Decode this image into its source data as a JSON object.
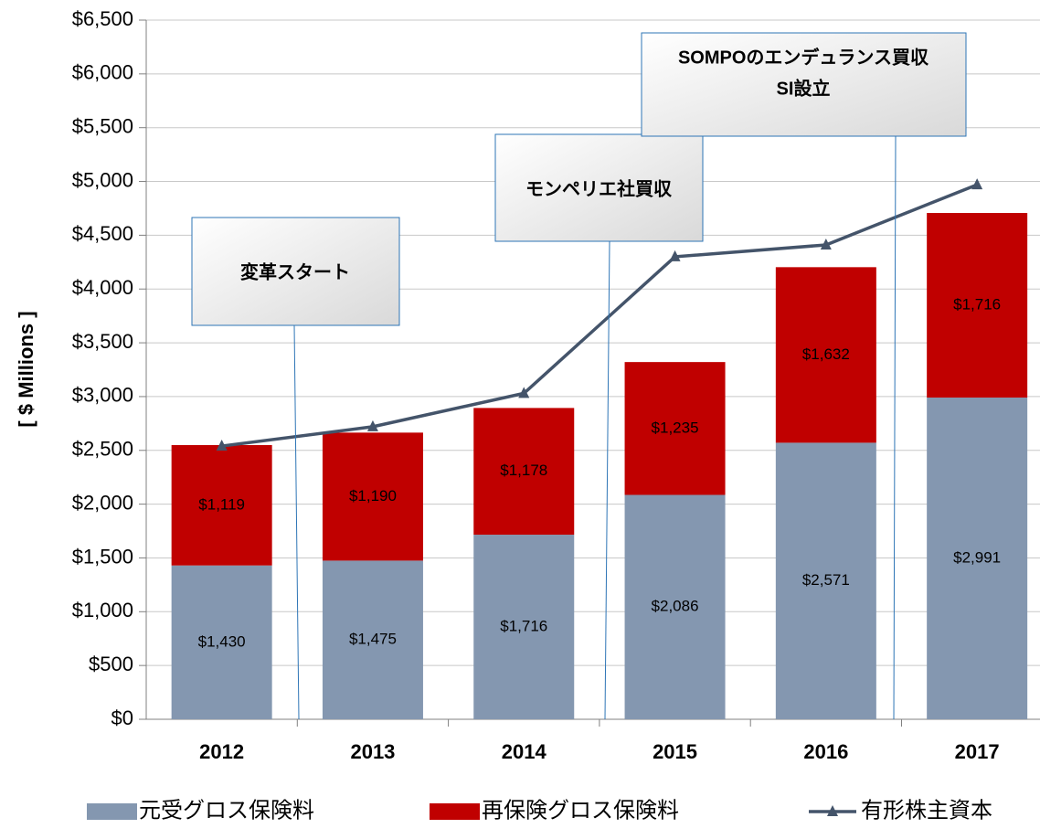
{
  "chart_data": {
    "type": "bar",
    "y_label": "[ $ Millions ]",
    "categories": [
      "2012",
      "2013",
      "2014",
      "2015",
      "2016",
      "2017"
    ],
    "series": [
      {
        "name": "元受グロス保険料",
        "color": "#8497b0",
        "values": [
          1430,
          1475,
          1716,
          2086,
          2571,
          2991
        ],
        "value_labels": [
          "$1,430",
          "$1,475",
          "$1,716",
          "$2,086",
          "$2,571",
          "$2,991"
        ]
      },
      {
        "name": "再保険グロス保険料",
        "color": "#c00000",
        "values": [
          1119,
          1190,
          1178,
          1235,
          1632,
          1716
        ],
        "value_labels": [
          "$1,119",
          "$1,190",
          "$1,178",
          "$1,235",
          "$1,632",
          "$1,716"
        ]
      },
      {
        "name": "有形株主資本",
        "type": "line",
        "color": "#44546a",
        "values": [
          2540,
          2720,
          3030,
          4300,
          4410,
          4970
        ]
      }
    ],
    "stacked": true,
    "ylim": [
      0,
      6500
    ],
    "yticks": [
      {
        "value": 0,
        "label": "$0"
      },
      {
        "value": 500,
        "label": "$500"
      },
      {
        "value": 1000,
        "label": "$1,000"
      },
      {
        "value": 1500,
        "label": "$1,500"
      },
      {
        "value": 2000,
        "label": "$2,000"
      },
      {
        "value": 2500,
        "label": "$2,500"
      },
      {
        "value": 3000,
        "label": "$3,000"
      },
      {
        "value": 3500,
        "label": "$3,500"
      },
      {
        "value": 4000,
        "label": "$4,000"
      },
      {
        "value": 4500,
        "label": "$4,500"
      },
      {
        "value": 5000,
        "label": "$5,000"
      },
      {
        "value": 5500,
        "label": "$5,500"
      },
      {
        "value": 6000,
        "label": "$6,000"
      },
      {
        "value": 6500,
        "label": "$6,500"
      }
    ],
    "grid": true,
    "legend": "bottom",
    "annotations": [
      {
        "lines": [
          "変革スタート"
        ]
      },
      {
        "lines": [
          "モンペリエ社買収"
        ]
      },
      {
        "lines": [
          "SOMPOのエンデュランス買収",
          "SI設立"
        ]
      }
    ]
  }
}
